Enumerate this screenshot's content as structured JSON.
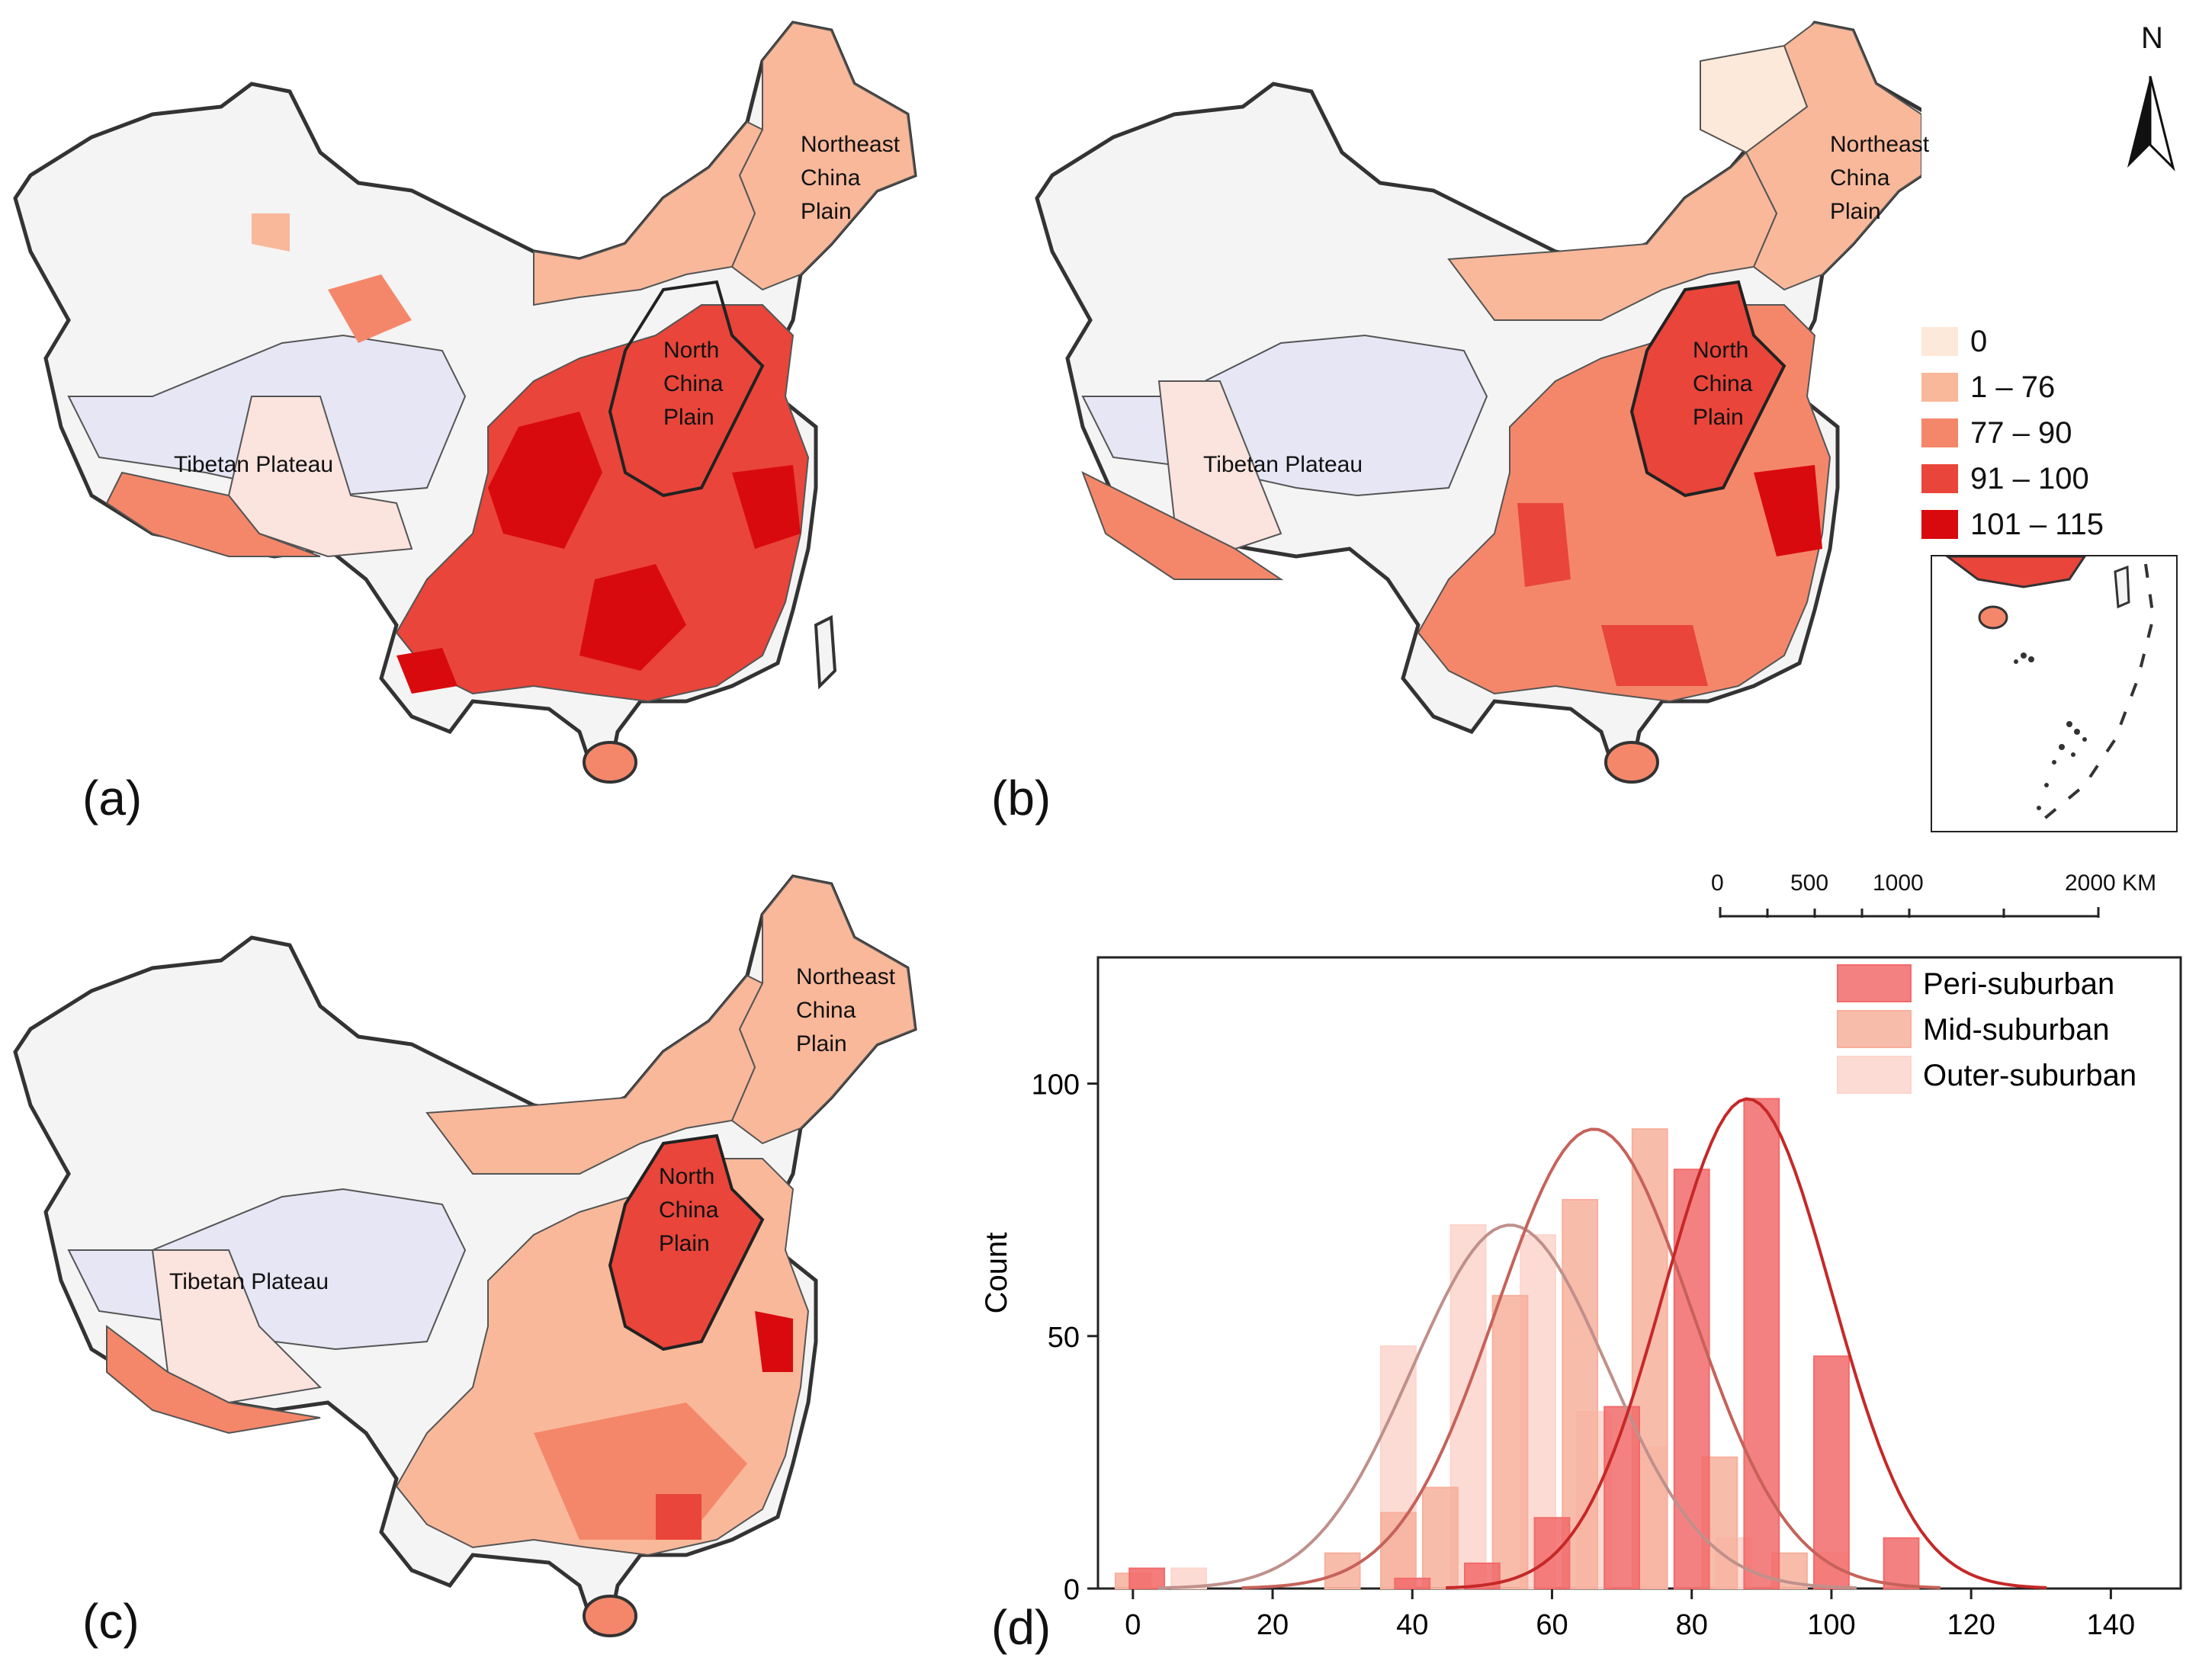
{
  "panels": {
    "a": {
      "label": "(a)",
      "regions": {
        "northeast": [
          "Northeast",
          "China",
          "Plain"
        ],
        "north": [
          "North",
          "China",
          "Plain"
        ],
        "tibet": "Tibetan Plateau"
      }
    },
    "b": {
      "label": "(b)",
      "regions": {
        "northeast": [
          "Northeast",
          "China",
          "Plain"
        ],
        "north": [
          "North",
          "China",
          "Plain"
        ],
        "tibet": "Tibetan Plateau"
      }
    },
    "c": {
      "label": "(c)",
      "regions": {
        "northeast": [
          "Northeast",
          "China",
          "Plain"
        ],
        "north": [
          "North",
          "China",
          "Plain"
        ],
        "tibet": "Tibetan Plateau"
      }
    },
    "d": {
      "label": "(d)"
    }
  },
  "legend": {
    "items": [
      {
        "label": "0",
        "color": "#fde9d9"
      },
      {
        "label": "1 – 76",
        "color": "#f9b89a"
      },
      {
        "label": "77 – 90",
        "color": "#f4876a"
      },
      {
        "label": "91 – 100",
        "color": "#e9453a"
      },
      {
        "label": "101 – 115",
        "color": "#d90a0e"
      }
    ]
  },
  "north_arrow": {
    "label": "N"
  },
  "scale_bar": {
    "ticks": [
      "0",
      "500",
      "1000",
      "2000 KM"
    ]
  },
  "map_colors": {
    "no_data": "#f4f4f4",
    "tibet_blue": "#e6e6f5",
    "tibet_pink": "#fbe3de",
    "border": "#333333"
  },
  "chart_data": {
    "type": "bar",
    "title": "",
    "xlabel": "",
    "ylabel": "Count",
    "xlim": [
      -5,
      150
    ],
    "ylim": [
      0,
      125
    ],
    "xticks": [
      0,
      20,
      40,
      60,
      80,
      100,
      120,
      140
    ],
    "yticks": [
      0,
      50,
      100
    ],
    "series": [
      {
        "name": "Outer-suburban",
        "color": "#fcd5cc",
        "curve_color": "#c0908b",
        "x": [
          2,
          8,
          38,
          48,
          58,
          66,
          74,
          86,
          100
        ],
        "values": [
          4,
          4,
          48,
          72,
          70,
          35,
          28,
          10,
          7
        ],
        "fit": {
          "mean": 54,
          "sd": 14,
          "peak": 72
        }
      },
      {
        "name": "Mid-suburban",
        "color": "#f7b09c",
        "curve_color": "#c6625a",
        "x": [
          0,
          30,
          38,
          44,
          54,
          64,
          74,
          84,
          94
        ],
        "values": [
          3,
          7,
          15,
          20,
          58,
          77,
          91,
          26,
          7
        ],
        "fit": {
          "mean": 66,
          "sd": 14,
          "peak": 91
        }
      },
      {
        "name": "Peri-suburban",
        "color": "#f26b6b",
        "curve_color": "#c62828",
        "x": [
          2,
          40,
          50,
          60,
          70,
          80,
          90,
          100,
          110
        ],
        "values": [
          4,
          2,
          5,
          14,
          36,
          83,
          97,
          46,
          10
        ],
        "fit": {
          "mean": 88,
          "sd": 12,
          "peak": 97
        }
      }
    ],
    "legend_order": [
      "Peri-suburban",
      "Mid-suburban",
      "Outer-suburban"
    ],
    "legend_position": "top-right"
  }
}
